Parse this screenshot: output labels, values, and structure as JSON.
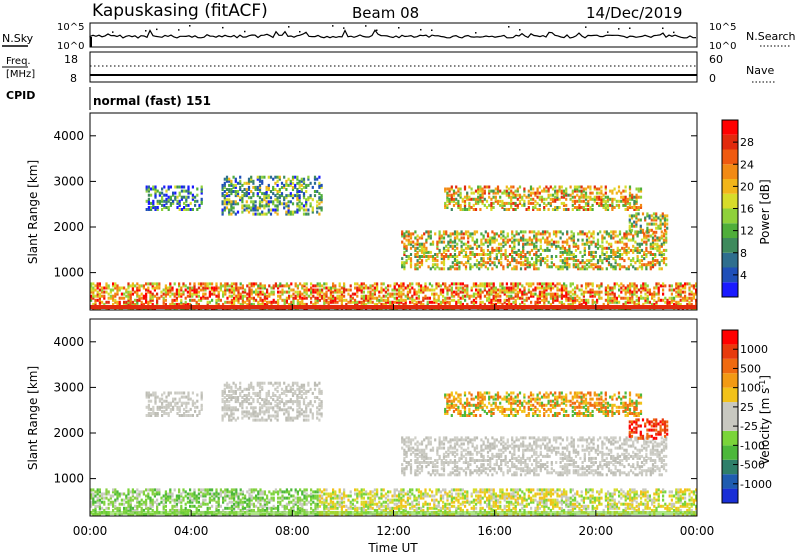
{
  "header": {
    "station": "Kapuskasing (fitACF)",
    "beam": "Beam 08",
    "date": "14/Dec/2019"
  },
  "left_labels": {
    "nsky": "N.Sky",
    "freq_line1": "Freq.",
    "freq_line2": "[MHz]",
    "cpid": "CPID"
  },
  "right_labels": {
    "nsearch": "N.Search",
    "nave": "Nave"
  },
  "cpid_text": "normal (fast) 151",
  "time_axis": {
    "label": "Time UT",
    "ticks": [
      "00:00",
      "04:00",
      "08:00",
      "12:00",
      "16:00",
      "20:00",
      "00:00"
    ]
  },
  "chart_data": [
    {
      "type": "line",
      "name": "noise",
      "left_axis": {
        "ticks": [
          "10^5",
          "10^0"
        ]
      },
      "right_axis": {
        "ticks": [
          "10^5",
          "10^0"
        ]
      },
      "left_series": "N.Sky (solid)",
      "right_series": "N.Search (dotted)"
    },
    {
      "type": "line",
      "name": "frequency",
      "left_axis": {
        "ticks": [
          18,
          8
        ],
        "unit": "MHz"
      },
      "right_axis": {
        "ticks": [
          60,
          0
        ]
      },
      "freq_value_mhz": 10.3,
      "nave_value": 39
    },
    {
      "type": "heatmap",
      "name": "power",
      "xlim_hours": [
        0,
        24
      ],
      "ylabel": "Slant Range [km]",
      "ylim": [
        180,
        4500
      ],
      "yticks": [
        1000,
        2000,
        3000,
        4000
      ],
      "colorbar": {
        "label": "Power [dB]",
        "ticks": [
          4,
          8,
          12,
          16,
          20,
          24,
          28
        ],
        "colors": [
          "#1a1aff",
          "#1f4fb8",
          "#2e6e8e",
          "#3e8a5c",
          "#4fae3a",
          "#8fd13a",
          "#d7dc2a",
          "#f2b51a",
          "#f28a14",
          "#ef5a10",
          "#e22a0c",
          "#ff0000"
        ]
      },
      "echo_regions": [
        {
          "t": [
            2.2,
            4.4
          ],
          "r": [
            2350,
            2850
          ],
          "level": 0.25
        },
        {
          "t": [
            5.2,
            9.2
          ],
          "r": [
            2250,
            3100
          ],
          "level": 0.35
        },
        {
          "t": [
            12.3,
            22.8
          ],
          "r": [
            1050,
            1900
          ],
          "level": 0.55
        },
        {
          "t": [
            14.0,
            21.8
          ],
          "r": [
            2350,
            2850
          ],
          "level": 0.6
        },
        {
          "t": [
            21.3,
            22.8
          ],
          "r": [
            1850,
            2300
          ],
          "level": 0.5
        },
        {
          "t": [
            0.0,
            24.0
          ],
          "r": [
            180,
            750
          ],
          "level": 0.7
        }
      ]
    },
    {
      "type": "heatmap",
      "name": "velocity",
      "xlim_hours": [
        0,
        24
      ],
      "ylabel": "Slant Range [km]",
      "ylim": [
        180,
        4500
      ],
      "yticks": [
        1000,
        2000,
        3000,
        4000
      ],
      "colorbar": {
        "label": "Velocity [m s^-1]",
        "ticks": [
          "1000",
          "500",
          "100",
          "25",
          "-25",
          "-100",
          "-500",
          "-1000"
        ],
        "colors": [
          "#1a2fd6",
          "#1f5cb0",
          "#2f7f6a",
          "#4cb83a",
          "#7ad43a",
          "#c8c8c0",
          "#c8c8c0",
          "#f2c21a",
          "#f29a14",
          "#ef6a10",
          "#e83a0c",
          "#ff0000"
        ]
      },
      "echo_regions": [
        {
          "t": [
            2.2,
            4.4
          ],
          "r": [
            2350,
            2850
          ],
          "vel": "grey"
        },
        {
          "t": [
            5.2,
            9.2
          ],
          "r": [
            2250,
            3100
          ],
          "vel": "grey"
        },
        {
          "t": [
            12.3,
            22.8
          ],
          "r": [
            1050,
            1900
          ],
          "vel": "grey"
        },
        {
          "t": [
            14.0,
            21.8
          ],
          "r": [
            2350,
            2850
          ],
          "vel": "orange"
        },
        {
          "t": [
            21.3,
            22.8
          ],
          "r": [
            1850,
            2300
          ],
          "vel": "red"
        },
        {
          "t": [
            0.0,
            9.0
          ],
          "r": [
            180,
            750
          ],
          "vel": "green"
        },
        {
          "t": [
            9.0,
            24.0
          ],
          "r": [
            180,
            750
          ],
          "vel": "yellow"
        }
      ]
    }
  ]
}
